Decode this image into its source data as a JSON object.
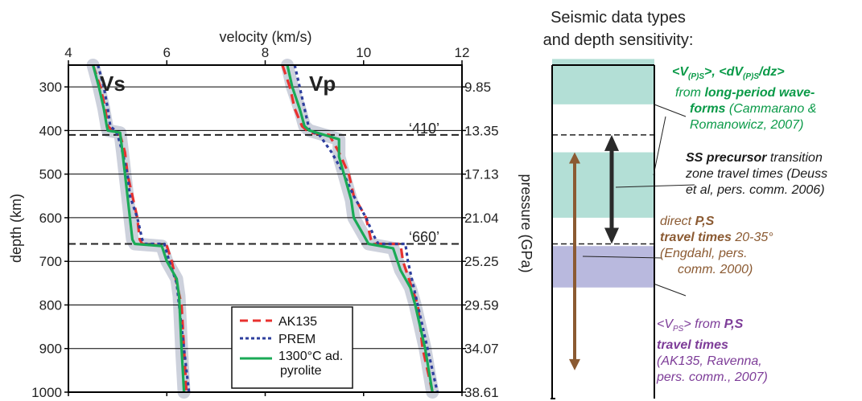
{
  "chart_data": {
    "type": "line",
    "xlabel": "velocity (km/s)",
    "ylabel": "depth (km)",
    "y2label": "pressure (GPa)",
    "xlim": [
      4,
      12
    ],
    "ylim": [
      250,
      1000
    ],
    "x_ticks": [
      "4",
      "6",
      "8",
      "10",
      "12"
    ],
    "y_ticks": [
      "300",
      "400",
      "500",
      "600",
      "700",
      "800",
      "900",
      "1000"
    ],
    "y_tick_values": [
      300,
      400,
      500,
      600,
      700,
      800,
      900,
      1000
    ],
    "pressure_ticks": [
      "9.85",
      "13.35",
      "17.13",
      "21.04",
      "25.25",
      "29.59",
      "34.07",
      "38.61"
    ],
    "vs_label": "Vs",
    "vp_label": "Vp",
    "discontinuities": [
      {
        "label": "‘410’",
        "depth": 410
      },
      {
        "label": "‘660’",
        "depth": 660
      }
    ],
    "series": [
      {
        "name": "AK135",
        "color": "#e8312f",
        "dash": "dash",
        "curves": {
          "vs": [
            [
              4.5,
              250
            ],
            [
              4.65,
              300
            ],
            [
              4.75,
              350
            ],
            [
              4.8,
              390
            ],
            [
              4.9,
              400
            ],
            [
              5.05,
              410
            ],
            [
              5.15,
              450
            ],
            [
              5.2,
              500
            ],
            [
              5.3,
              550
            ],
            [
              5.4,
              600
            ],
            [
              5.45,
              650
            ],
            [
              5.5,
              660
            ],
            [
              6.0,
              665
            ],
            [
              6.1,
              700
            ],
            [
              6.2,
              750
            ],
            [
              6.3,
              800
            ],
            [
              6.35,
              900
            ],
            [
              6.4,
              1000
            ]
          ],
          "vp": [
            [
              8.35,
              250
            ],
            [
              8.5,
              300
            ],
            [
              8.6,
              350
            ],
            [
              8.75,
              390
            ],
            [
              8.9,
              405
            ],
            [
              9.3,
              410
            ],
            [
              9.5,
              450
            ],
            [
              9.7,
              500
            ],
            [
              9.8,
              550
            ],
            [
              10.05,
              600
            ],
            [
              10.15,
              650
            ],
            [
              10.2,
              660
            ],
            [
              10.75,
              660
            ],
            [
              10.8,
              700
            ],
            [
              10.95,
              750
            ],
            [
              11.1,
              800
            ],
            [
              11.2,
              900
            ],
            [
              11.4,
              1000
            ]
          ]
        }
      },
      {
        "name": "PREM",
        "color": "#2e3f9e",
        "dash": "dot",
        "curves": {
          "vs": [
            [
              4.6,
              250
            ],
            [
              4.72,
              300
            ],
            [
              4.8,
              350
            ],
            [
              4.85,
              390
            ],
            [
              4.95,
              400
            ],
            [
              5.0,
              410
            ],
            [
              5.1,
              450
            ],
            [
              5.2,
              500
            ],
            [
              5.25,
              550
            ],
            [
              5.4,
              600
            ],
            [
              5.5,
              650
            ],
            [
              5.55,
              660
            ],
            [
              5.95,
              660
            ],
            [
              6.05,
              700
            ],
            [
              6.2,
              750
            ],
            [
              6.25,
              800
            ],
            [
              6.35,
              900
            ],
            [
              6.45,
              1000
            ]
          ],
          "vp": [
            [
              8.6,
              250
            ],
            [
              8.7,
              300
            ],
            [
              8.8,
              350
            ],
            [
              8.9,
              400
            ],
            [
              9.1,
              410
            ],
            [
              9.35,
              450
            ],
            [
              9.6,
              500
            ],
            [
              9.8,
              550
            ],
            [
              10.05,
              600
            ],
            [
              10.2,
              640
            ],
            [
              10.3,
              660
            ],
            [
              10.85,
              660
            ],
            [
              10.9,
              700
            ],
            [
              11.0,
              750
            ],
            [
              11.1,
              800
            ],
            [
              11.3,
              900
            ],
            [
              11.5,
              1000
            ]
          ]
        }
      },
      {
        "name": "1300°C ad. pyrolite",
        "legend_lines": [
          "1300°C ad.",
          "pyrolite"
        ],
        "color": "#1aaa56",
        "dash": "solid",
        "curves": {
          "vs": [
            [
              4.5,
              250
            ],
            [
              4.62,
              300
            ],
            [
              4.72,
              350
            ],
            [
              4.78,
              390
            ],
            [
              4.8,
              400
            ],
            [
              5.05,
              405
            ],
            [
              5.1,
              450
            ],
            [
              5.15,
              500
            ],
            [
              5.2,
              550
            ],
            [
              5.25,
              600
            ],
            [
              5.3,
              650
            ],
            [
              5.35,
              660
            ],
            [
              5.9,
              665
            ],
            [
              6.0,
              700
            ],
            [
              6.2,
              740
            ],
            [
              6.25,
              780
            ],
            [
              6.3,
              900
            ],
            [
              6.35,
              1000
            ]
          ],
          "vp": [
            [
              8.45,
              250
            ],
            [
              8.55,
              300
            ],
            [
              8.7,
              350
            ],
            [
              8.8,
              390
            ],
            [
              8.9,
              400
            ],
            [
              9.5,
              420
            ],
            [
              9.5,
              460
            ],
            [
              9.65,
              520
            ],
            [
              9.75,
              560
            ],
            [
              9.8,
              600
            ],
            [
              10.0,
              640
            ],
            [
              10.1,
              660
            ],
            [
              10.6,
              670
            ],
            [
              10.75,
              720
            ],
            [
              10.95,
              760
            ],
            [
              11.05,
              800
            ],
            [
              11.25,
              900
            ],
            [
              11.4,
              1000
            ]
          ]
        }
      }
    ],
    "legend_location": "lower-right"
  },
  "panel": {
    "heading_line1": "Seismic data types",
    "heading_line2": "and depth sensitivity:",
    "bands": [
      {
        "id": "long-period",
        "top": 236,
        "bottom": 340,
        "color": "#b3dfd6"
      },
      {
        "id": "ss-precursor",
        "top": 450,
        "bottom": 600,
        "color": "#b3dfd6"
      },
      {
        "id": "direct-ps",
        "top": 665,
        "bottom": 760,
        "color": "#b9b9de"
      }
    ],
    "dashed_lines": [
      410,
      660
    ],
    "arrows": [
      {
        "id": "ss-arrow",
        "color": "#2a2a2a",
        "top": 410,
        "bottom": 660
      },
      {
        "id": "ps-arrow",
        "color": "#8b5a32",
        "top": 450,
        "bottom": 950
      }
    ],
    "annotations": {
      "long_period": {
        "line1_a": "<V",
        "line1_sub1": "(P)S",
        "line1_b": ">, <dV",
        "line1_sub2": "(P)S",
        "line1_c": "/dz>",
        "line2_a": "from ",
        "line2_b": "long-period wave-",
        "line3_a": "forms",
        "line3_b": " (Cammarano &",
        "line4": "Romanowicz, 2007)"
      },
      "ss_precursor": {
        "line1_a": "SS precursor",
        "line1_b": " transition",
        "line2": "zone travel times (Deuss",
        "line3": "et al, pers. comm. 2006)"
      },
      "direct_ps": {
        "line1_a": "direct ",
        "line1_b": "P,S",
        "line2_a": "travel times",
        "line2_b": " 20-35°",
        "line3": "(Engdahl, pers.",
        "line4": "comm. 2000)"
      },
      "vps": {
        "line1_a": "<V",
        "line1_sub": "PS",
        "line1_b": "> from ",
        "line1_c": "P,S",
        "line2": "travel times",
        "line3": "(AK135, Ravenna,",
        "line4": "pers. comm., 2007)"
      }
    }
  }
}
